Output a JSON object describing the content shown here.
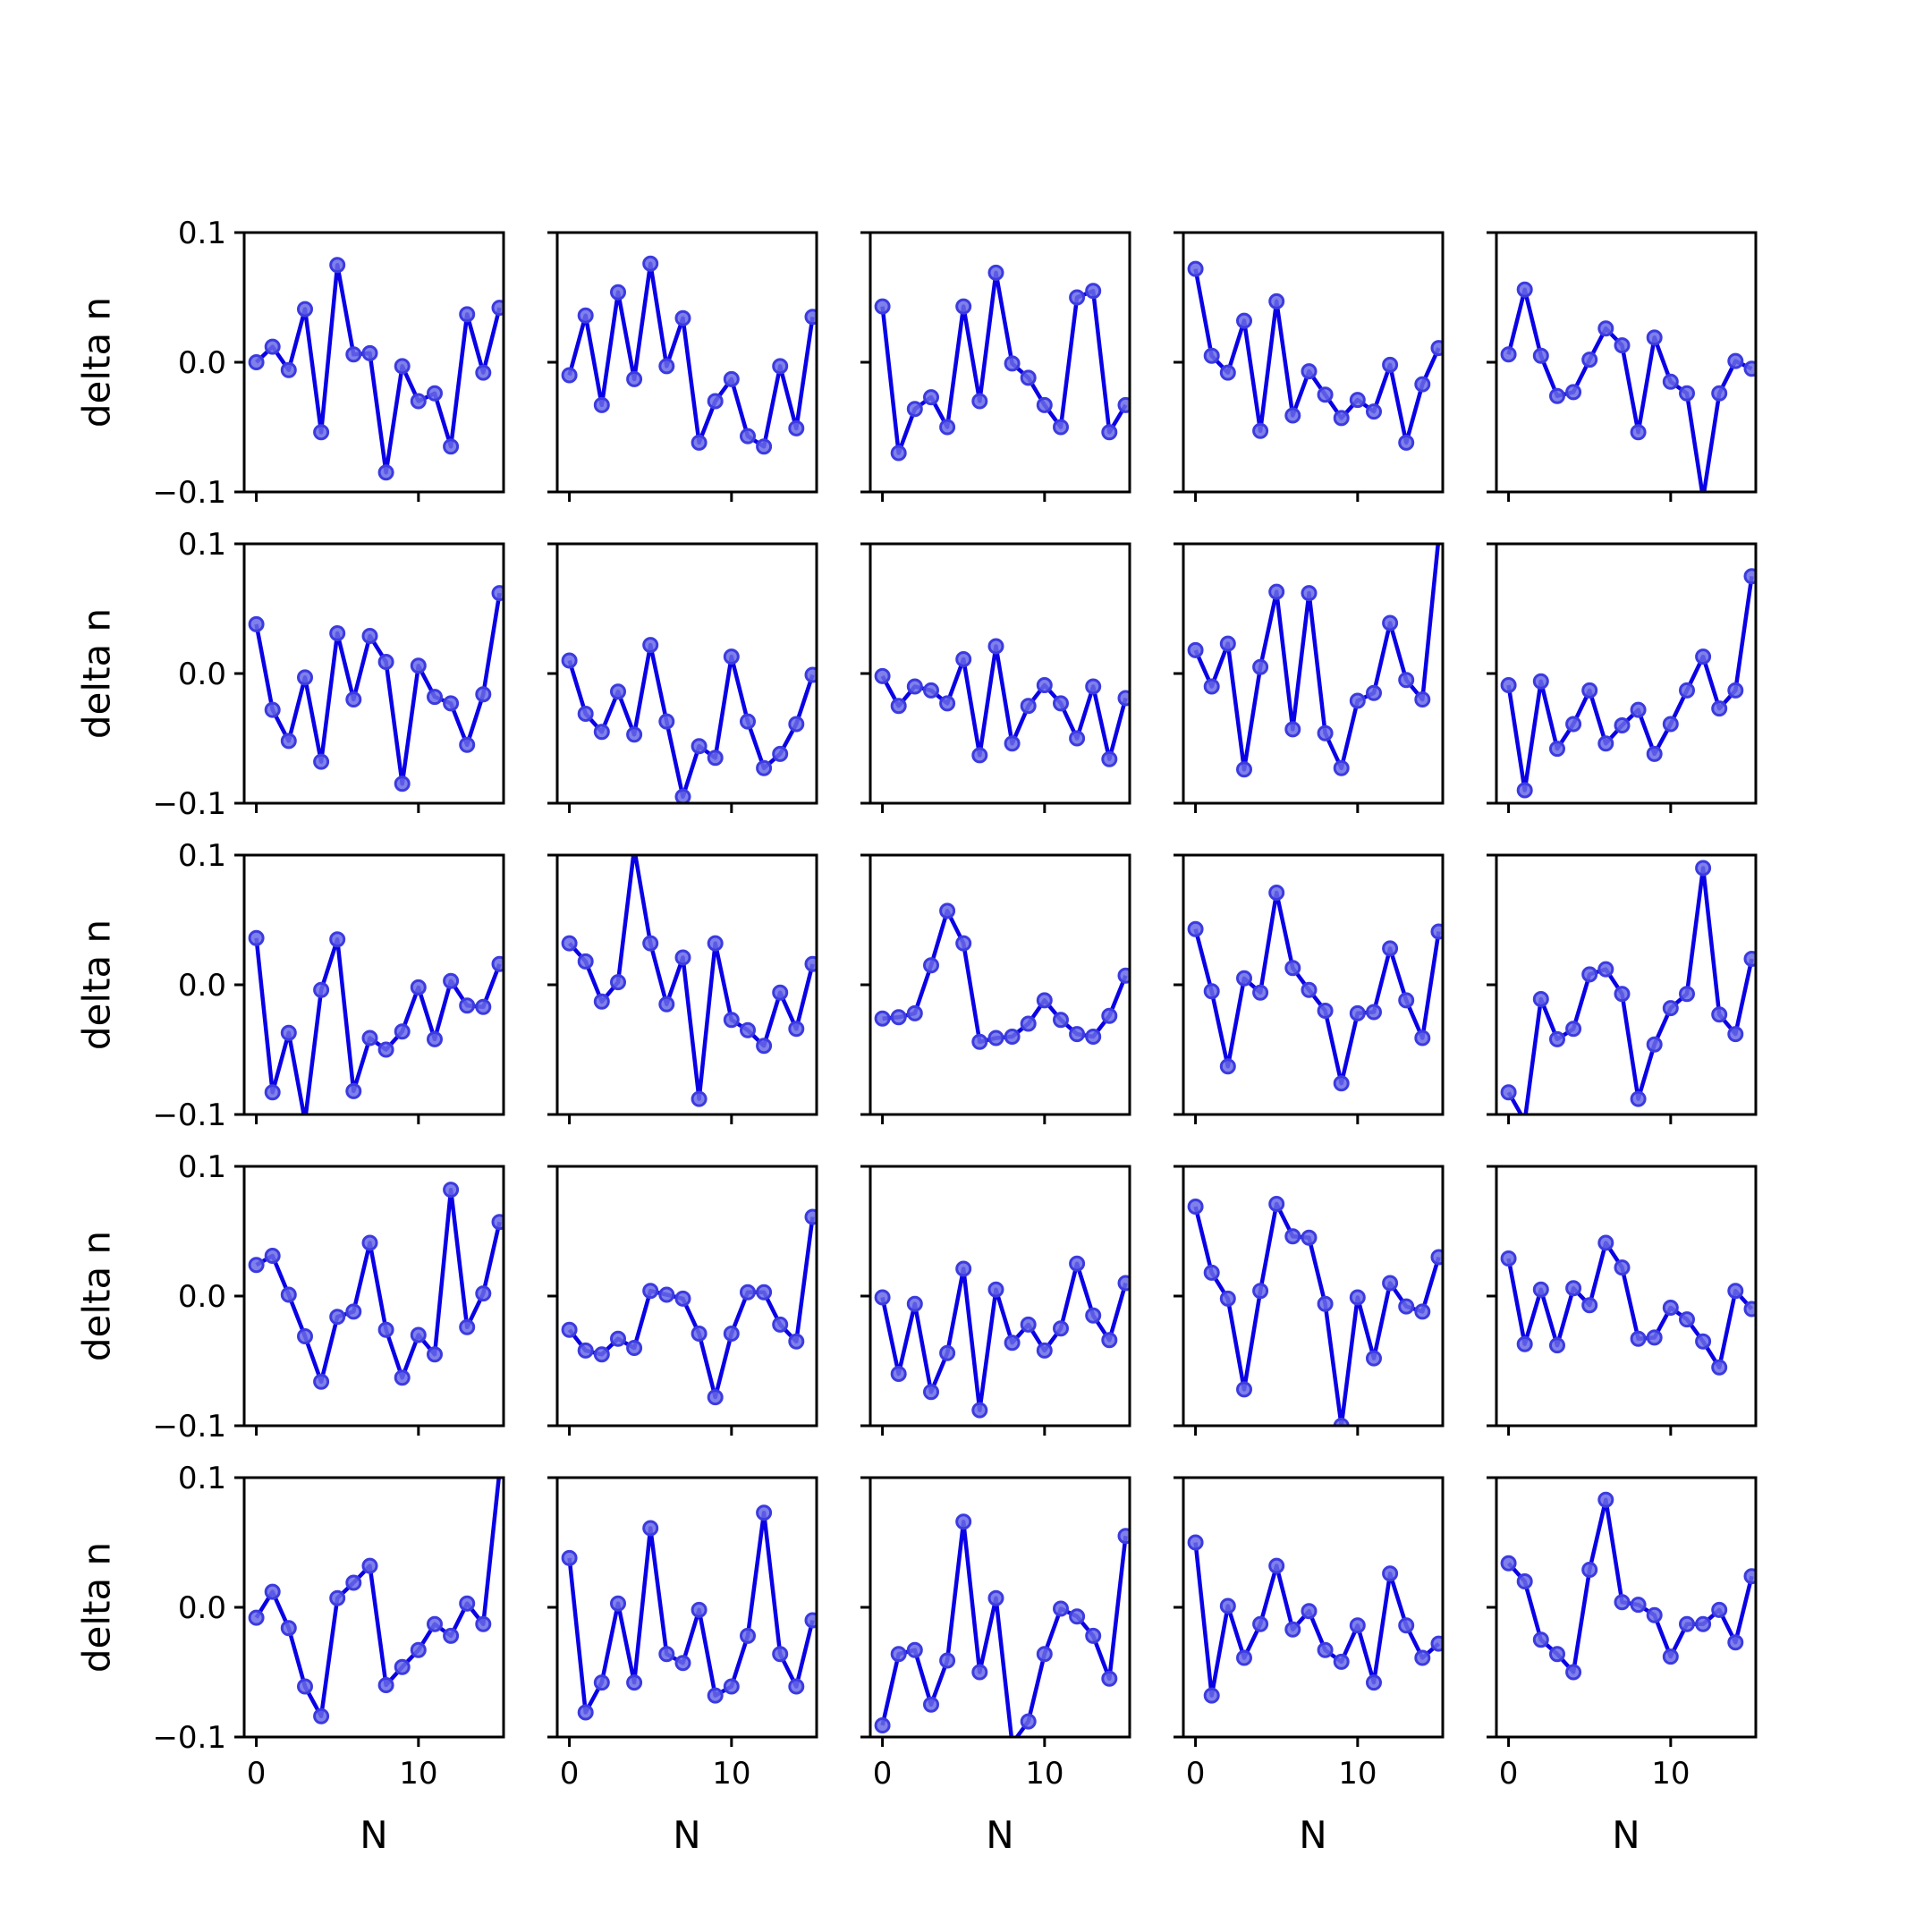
{
  "figure": {
    "rows": 5,
    "cols": 5
  },
  "style": {
    "line_color": "#0a00e6",
    "marker_fill": "#6a6ae6",
    "marker_edge": "#3b3be0"
  },
  "chart_data": {
    "type": "line",
    "xlabel": "N",
    "ylabel": "delta n",
    "x": [
      0,
      1,
      2,
      3,
      4,
      5,
      6,
      7,
      8,
      9,
      10,
      11,
      12,
      13,
      14,
      15
    ],
    "xlim": [
      -0.75,
      15.25
    ],
    "ylim": [
      -0.1,
      0.1
    ],
    "xticks": [
      0,
      10
    ],
    "xtick_labels": [
      "0",
      "10"
    ],
    "yticks": [
      0.1,
      0.0,
      -0.1
    ],
    "ytick_labels": [
      "0.1",
      "0.0",
      "−0.1"
    ],
    "grid": false,
    "panels": [
      [
        0.0,
        0.012,
        -0.006,
        0.041,
        -0.054,
        0.075,
        0.006,
        0.007,
        -0.085,
        -0.003,
        -0.03,
        -0.024,
        -0.065,
        0.037,
        -0.008,
        0.042
      ],
      [
        -0.01,
        0.036,
        -0.033,
        0.054,
        -0.013,
        0.076,
        -0.003,
        0.034,
        -0.062,
        -0.03,
        -0.013,
        -0.057,
        -0.065,
        -0.003,
        -0.051,
        0.035
      ],
      [
        0.043,
        -0.07,
        -0.036,
        -0.027,
        -0.05,
        0.043,
        -0.03,
        0.069,
        -0.001,
        -0.012,
        -0.033,
        -0.05,
        0.05,
        0.055,
        -0.054,
        -0.033
      ],
      [
        0.072,
        0.005,
        -0.008,
        0.032,
        -0.053,
        0.047,
        -0.041,
        -0.007,
        -0.025,
        -0.043,
        -0.029,
        -0.038,
        -0.002,
        -0.062,
        -0.017,
        0.011
      ],
      [
        0.006,
        0.056,
        0.005,
        -0.026,
        -0.023,
        0.002,
        0.026,
        0.013,
        -0.054,
        0.019,
        -0.015,
        -0.024,
        -0.105,
        -0.024,
        0.001,
        -0.005
      ],
      [
        0.038,
        -0.028,
        -0.052,
        -0.003,
        -0.068,
        0.031,
        -0.02,
        0.029,
        0.009,
        -0.085,
        0.006,
        -0.018,
        -0.023,
        -0.055,
        -0.016,
        0.062
      ],
      [
        0.01,
        -0.031,
        -0.045,
        -0.014,
        -0.047,
        0.022,
        -0.037,
        -0.095,
        -0.056,
        -0.065,
        0.013,
        -0.037,
        -0.073,
        -0.062,
        -0.039,
        -0.001
      ],
      [
        -0.002,
        -0.025,
        -0.01,
        -0.013,
        -0.023,
        0.011,
        -0.063,
        0.021,
        -0.054,
        -0.025,
        -0.009,
        -0.023,
        -0.05,
        -0.01,
        -0.066,
        -0.019
      ],
      [
        0.018,
        -0.01,
        0.023,
        -0.074,
        0.005,
        0.063,
        -0.043,
        0.062,
        -0.046,
        -0.073,
        -0.021,
        -0.015,
        0.039,
        -0.005,
        -0.02,
        0.105
      ],
      [
        -0.009,
        -0.09,
        -0.006,
        -0.058,
        -0.039,
        -0.013,
        -0.054,
        -0.04,
        -0.028,
        -0.062,
        -0.039,
        -0.013,
        0.013,
        -0.027,
        -0.013,
        0.075
      ],
      [
        0.036,
        -0.083,
        -0.037,
        -0.105,
        -0.004,
        0.035,
        -0.082,
        -0.041,
        -0.05,
        -0.036,
        -0.002,
        -0.042,
        0.003,
        -0.016,
        -0.017,
        0.016
      ],
      [
        0.032,
        0.018,
        -0.013,
        0.002,
        0.105,
        0.032,
        -0.015,
        0.021,
        -0.088,
        0.032,
        -0.027,
        -0.035,
        -0.047,
        -0.006,
        -0.034,
        0.016
      ],
      [
        -0.026,
        -0.025,
        -0.022,
        0.015,
        0.057,
        0.032,
        -0.044,
        -0.041,
        -0.04,
        -0.03,
        -0.012,
        -0.027,
        -0.038,
        -0.04,
        -0.024,
        0.007
      ],
      [
        0.043,
        -0.005,
        -0.063,
        0.005,
        -0.006,
        0.071,
        0.013,
        -0.004,
        -0.02,
        -0.076,
        -0.022,
        -0.021,
        0.028,
        -0.012,
        -0.041,
        0.041
      ],
      [
        -0.083,
        -0.105,
        -0.011,
        -0.042,
        -0.034,
        0.008,
        0.012,
        -0.007,
        -0.088,
        -0.046,
        -0.018,
        -0.007,
        0.09,
        -0.023,
        -0.038,
        0.02
      ],
      [
        0.024,
        0.031,
        0.001,
        -0.031,
        -0.066,
        -0.016,
        -0.012,
        0.041,
        -0.026,
        -0.063,
        -0.03,
        -0.045,
        0.082,
        -0.024,
        0.002,
        0.057
      ],
      [
        -0.026,
        -0.042,
        -0.045,
        -0.033,
        -0.04,
        0.004,
        0.001,
        -0.002,
        -0.029,
        -0.078,
        -0.029,
        0.003,
        0.003,
        -0.022,
        -0.035,
        0.061
      ],
      [
        -0.001,
        -0.06,
        -0.006,
        -0.074,
        -0.044,
        0.021,
        -0.088,
        0.005,
        -0.036,
        -0.022,
        -0.042,
        -0.025,
        0.025,
        -0.015,
        -0.034,
        0.01
      ],
      [
        0.069,
        0.018,
        -0.002,
        -0.072,
        0.004,
        0.071,
        0.046,
        0.045,
        -0.006,
        -0.1,
        -0.001,
        -0.048,
        0.01,
        -0.008,
        -0.012,
        0.03
      ],
      [
        0.029,
        -0.037,
        0.005,
        -0.038,
        0.006,
        -0.007,
        0.041,
        0.022,
        -0.033,
        -0.032,
        -0.009,
        -0.018,
        -0.035,
        -0.055,
        0.004,
        -0.01
      ],
      [
        -0.008,
        0.012,
        -0.016,
        -0.061,
        -0.084,
        0.007,
        0.019,
        0.032,
        -0.06,
        -0.046,
        -0.033,
        -0.013,
        -0.022,
        0.003,
        -0.013,
        0.105
      ],
      [
        0.038,
        -0.081,
        -0.058,
        0.003,
        -0.058,
        0.061,
        -0.036,
        -0.043,
        -0.002,
        -0.068,
        -0.061,
        -0.022,
        0.073,
        -0.036,
        -0.061,
        -0.01
      ],
      [
        -0.091,
        -0.036,
        -0.033,
        -0.075,
        -0.041,
        0.066,
        -0.05,
        0.007,
        -0.105,
        -0.088,
        -0.036,
        -0.001,
        -0.007,
        -0.022,
        -0.055,
        0.055
      ],
      [
        0.05,
        -0.068,
        0.001,
        -0.039,
        -0.013,
        0.032,
        -0.017,
        -0.003,
        -0.033,
        -0.042,
        -0.014,
        -0.058,
        0.026,
        -0.014,
        -0.039,
        -0.028
      ],
      [
        0.034,
        0.02,
        -0.025,
        -0.036,
        -0.05,
        0.029,
        0.083,
        0.004,
        0.002,
        -0.006,
        -0.038,
        -0.013,
        -0.013,
        -0.002,
        -0.027,
        0.024
      ]
    ]
  }
}
